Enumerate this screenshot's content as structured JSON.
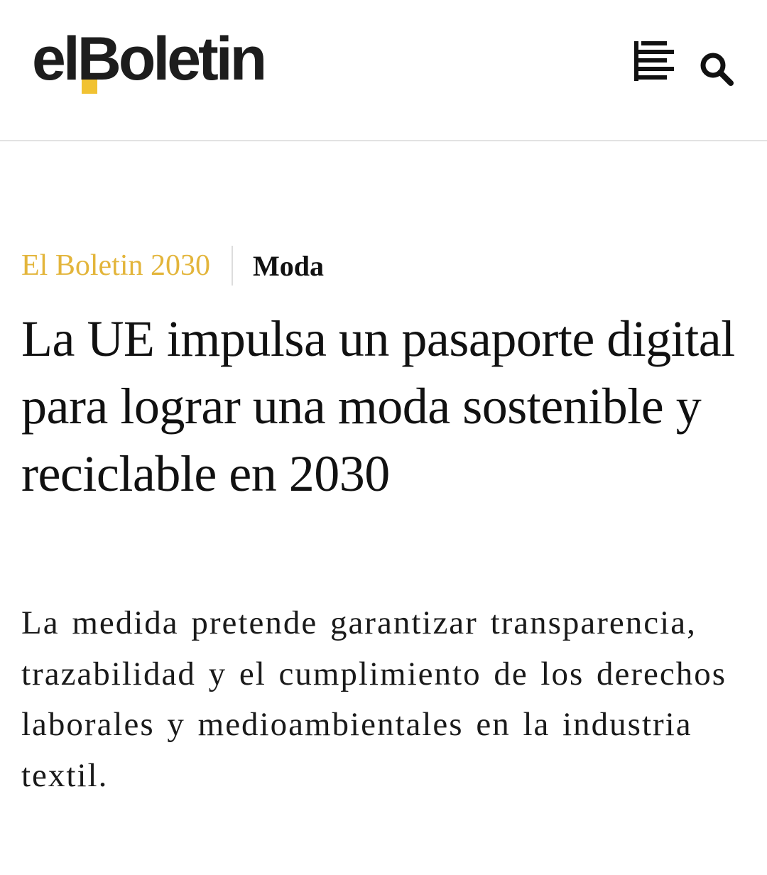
{
  "header": {
    "logo": "elBoletin"
  },
  "article": {
    "section": "El Boletin 2030",
    "category": "Moda",
    "title": "La UE impulsa un pasaporte digital para lograr una moda sostenible y reciclable en 2030",
    "subtitle": "La medida pretende garantizar transparencia, trazabilidad y el cumplimiento de los derechos laborales y medioambientales en la industria textil."
  }
}
